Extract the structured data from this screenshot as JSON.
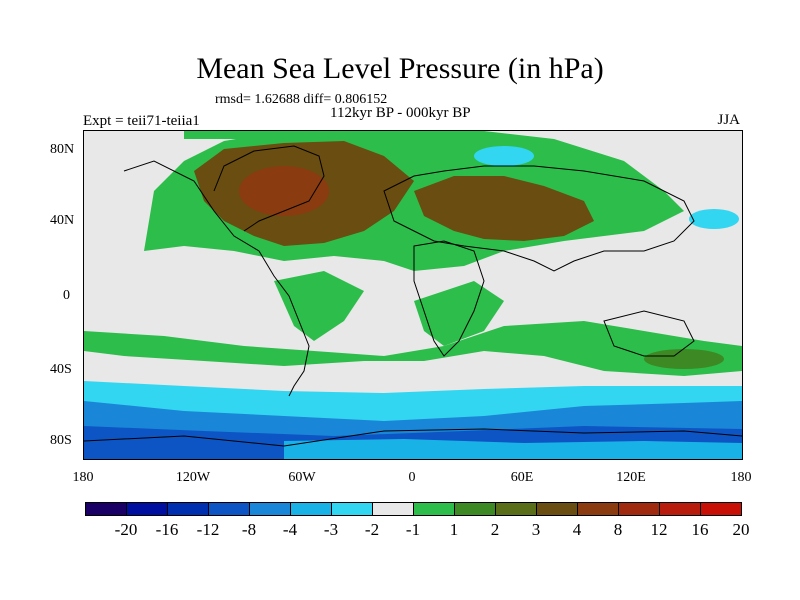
{
  "title": "Mean Sea Level Pressure (in hPa)",
  "stats": "rmsd= 1.62688 diff= 0.806152",
  "experiment": "Expt = teii71-teiia1",
  "period": "112kyr BP - 000kyr BP",
  "season": "JJA",
  "y_ticks": [
    "80N",
    "40N",
    "0",
    "40S",
    "80S"
  ],
  "x_ticks": [
    "180",
    "120W",
    "60W",
    "0",
    "60E",
    "120E",
    "180"
  ],
  "legend": {
    "colors": [
      "#1a0066",
      "#000fa0",
      "#0030b0",
      "#0d55c4",
      "#1a86d8",
      "#19b2e6",
      "#33d6f0",
      "#e8e8e8",
      "#2dbd4a",
      "#3d8a24",
      "#5a6e1a",
      "#6a4d10",
      "#8a3c10",
      "#a02a10",
      "#b81c0c",
      "#c81006"
    ],
    "labels": [
      "-20",
      "-16",
      "-12",
      "-8",
      "-4",
      "-3",
      "-2",
      "-1",
      "1",
      "2",
      "3",
      "4",
      "8",
      "12",
      "16",
      "20"
    ]
  }
}
